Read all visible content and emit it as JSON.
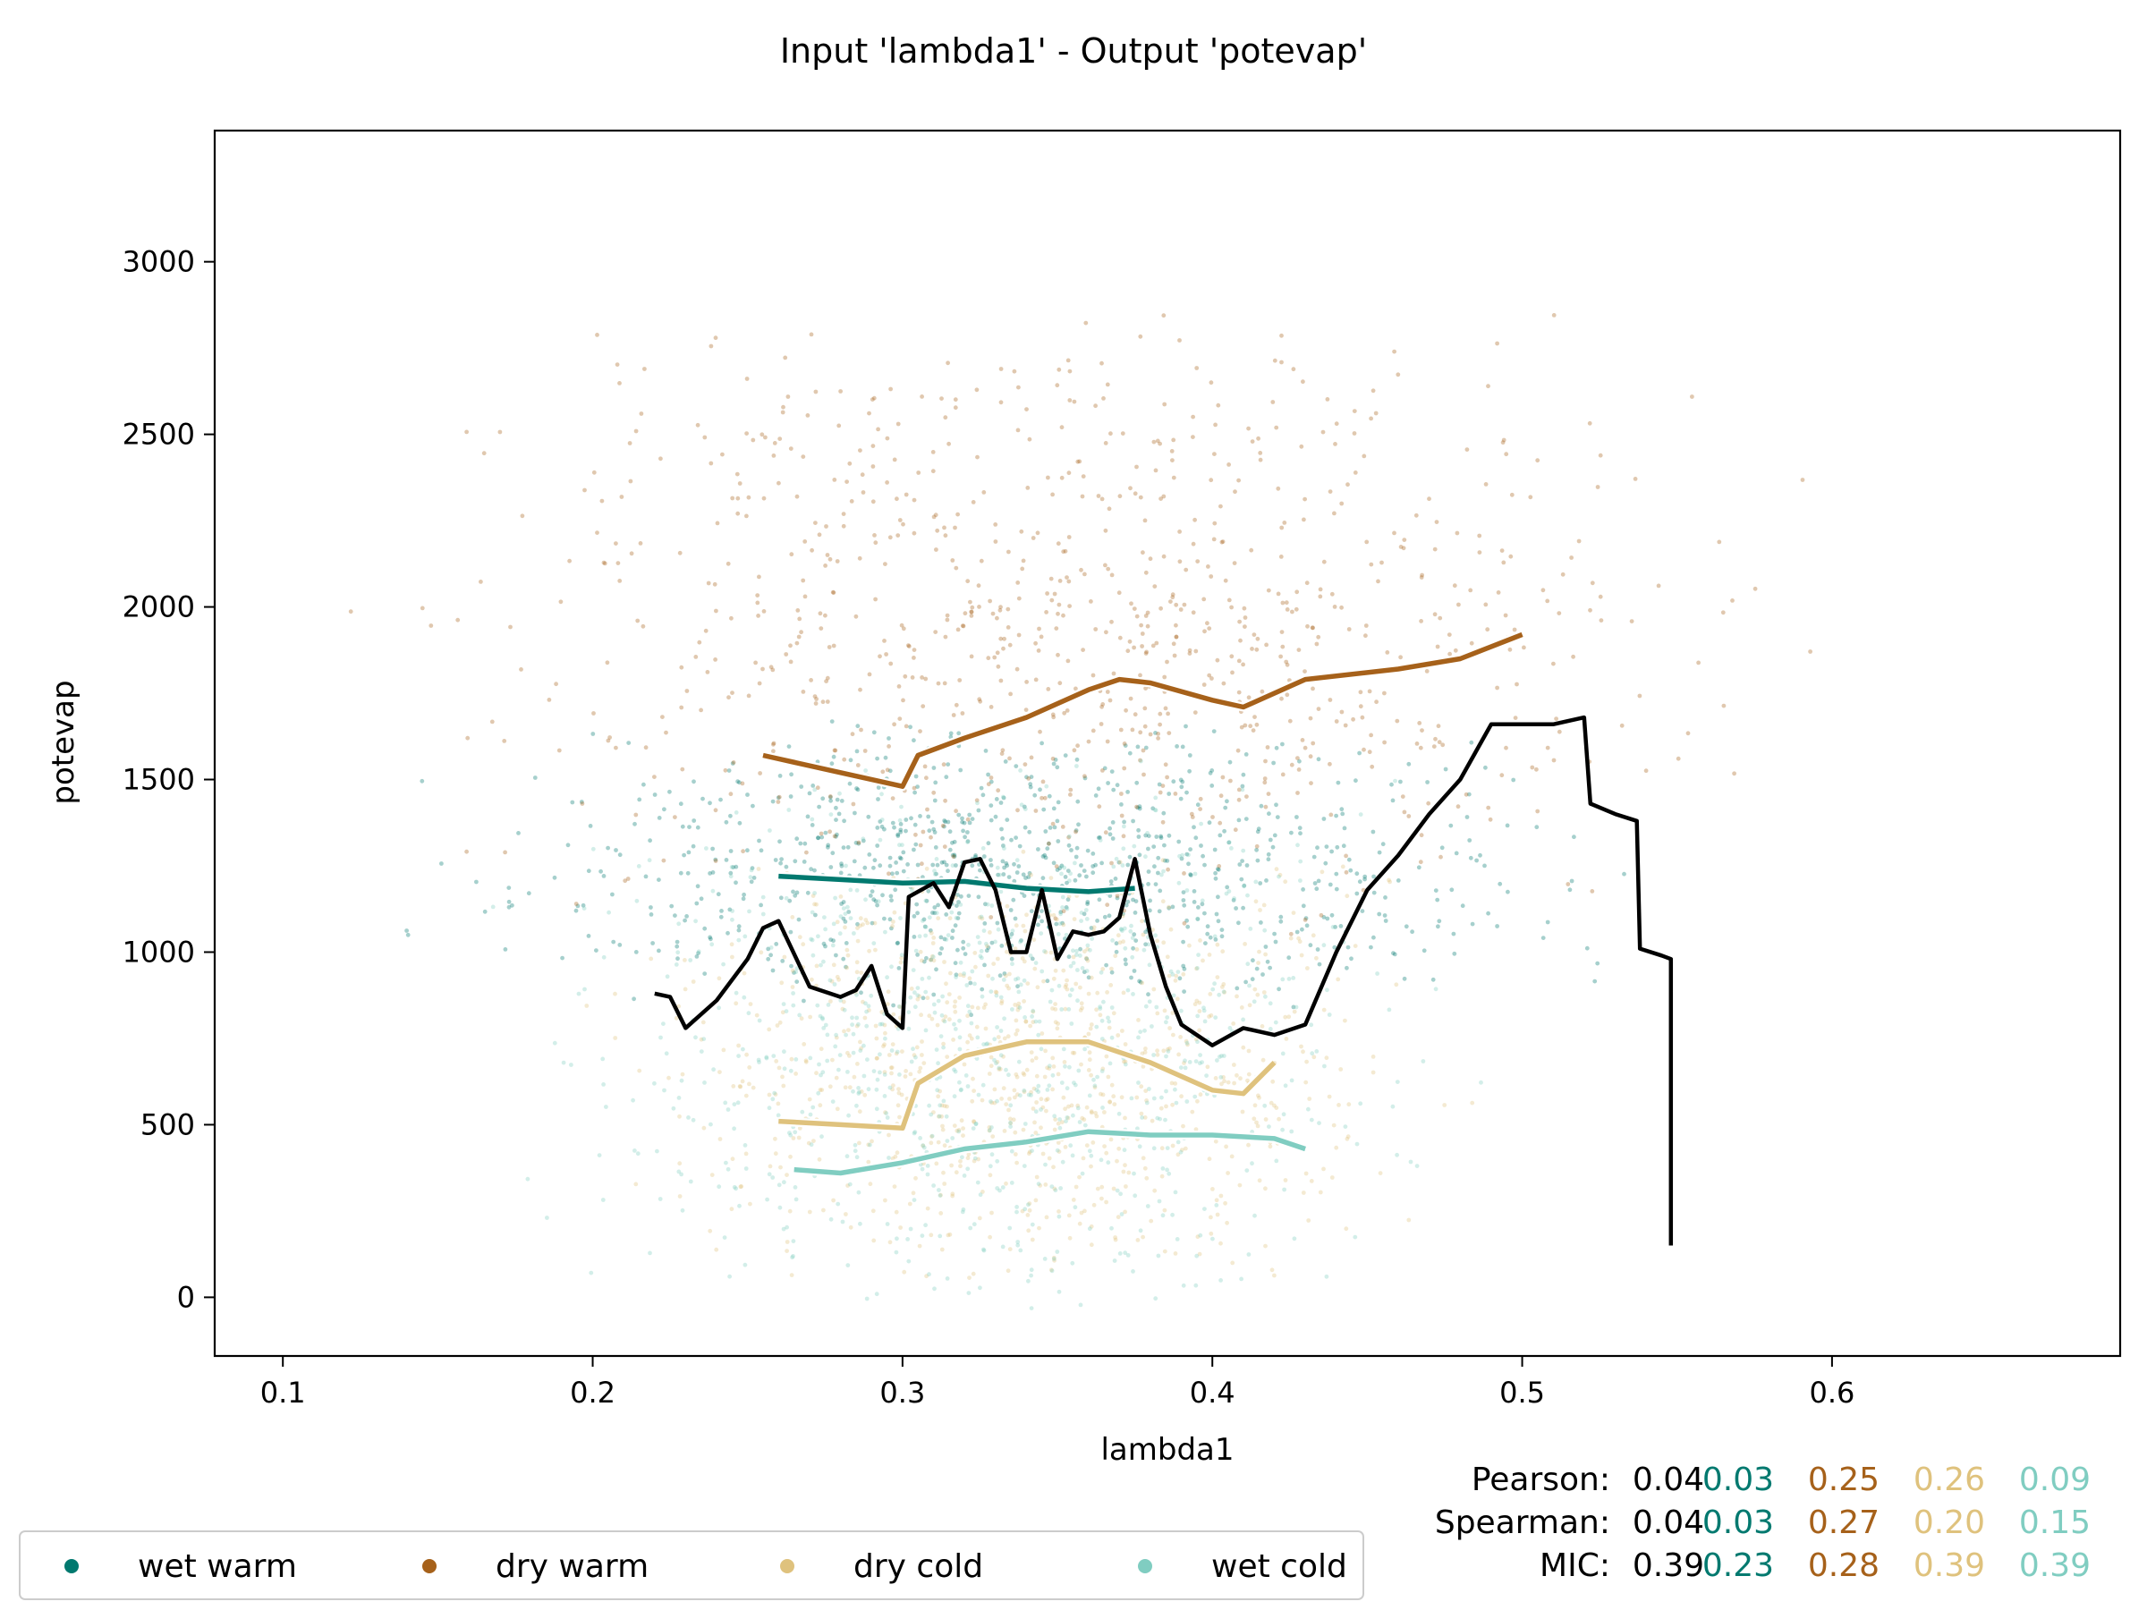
{
  "chart_data": {
    "type": "scatter",
    "title": "Input 'lambda1' - Output 'potevap'",
    "xlabel": "lambda1",
    "ylabel": "potevap",
    "xlim": [
      0.078,
      0.693
    ],
    "ylim": [
      -170,
      3380
    ],
    "xticks": [
      0.1,
      0.2,
      0.3,
      0.4,
      0.5,
      0.6
    ],
    "xtick_labels": [
      "0.1",
      "0.2",
      "0.3",
      "0.4",
      "0.5",
      "0.6"
    ],
    "yticks": [
      0,
      500,
      1000,
      1500,
      2000,
      2500,
      3000
    ],
    "ytick_labels": [
      "0",
      "500",
      "1000",
      "1500",
      "2000",
      "2500",
      "3000"
    ],
    "grid": false,
    "legend_position": "bottom-left, below axes",
    "series": [
      {
        "name": "wet warm",
        "color": "#01796f",
        "scatter_cloud": {
          "x_range": [
            0.17,
            0.5
          ],
          "y_range": [
            900,
            1600
          ]
        },
        "trend": [
          [
            0.26,
            1220
          ],
          [
            0.28,
            1210
          ],
          [
            0.3,
            1200
          ],
          [
            0.32,
            1205
          ],
          [
            0.34,
            1185
          ],
          [
            0.36,
            1175
          ],
          [
            0.375,
            1185
          ]
        ]
      },
      {
        "name": "dry warm",
        "color": "#a6611a",
        "scatter_cloud": {
          "x_range": [
            0.17,
            0.55
          ],
          "y_range": [
            1200,
            2700
          ]
        },
        "trend": [
          [
            0.255,
            1570
          ],
          [
            0.28,
            1520
          ],
          [
            0.3,
            1480
          ],
          [
            0.305,
            1570
          ],
          [
            0.32,
            1620
          ],
          [
            0.34,
            1680
          ],
          [
            0.36,
            1760
          ],
          [
            0.37,
            1790
          ],
          [
            0.38,
            1780
          ],
          [
            0.4,
            1730
          ],
          [
            0.41,
            1710
          ],
          [
            0.43,
            1790
          ],
          [
            0.46,
            1820
          ],
          [
            0.48,
            1850
          ],
          [
            0.5,
            1920
          ]
        ]
      },
      {
        "name": "dry cold",
        "color": "#dfc27d",
        "scatter_cloud": {
          "x_range": [
            0.22,
            0.46
          ],
          "y_range": [
            150,
            1200
          ]
        },
        "trend": [
          [
            0.26,
            510
          ],
          [
            0.28,
            500
          ],
          [
            0.3,
            490
          ],
          [
            0.305,
            620
          ],
          [
            0.32,
            700
          ],
          [
            0.34,
            740
          ],
          [
            0.36,
            740
          ],
          [
            0.38,
            680
          ],
          [
            0.4,
            600
          ],
          [
            0.41,
            590
          ],
          [
            0.42,
            680
          ]
        ]
      },
      {
        "name": "wet cold",
        "color": "#80cdc1",
        "scatter_cloud": {
          "x_range": [
            0.2,
            0.46
          ],
          "y_range": [
            100,
            1400
          ]
        },
        "trend": [
          [
            0.265,
            370
          ],
          [
            0.28,
            360
          ],
          [
            0.3,
            390
          ],
          [
            0.32,
            430
          ],
          [
            0.34,
            450
          ],
          [
            0.36,
            480
          ],
          [
            0.38,
            470
          ],
          [
            0.4,
            470
          ],
          [
            0.42,
            460
          ],
          [
            0.43,
            430
          ]
        ]
      },
      {
        "name": "",
        "color": "#000000",
        "trend": [
          [
            0.22,
            880
          ],
          [
            0.225,
            870
          ],
          [
            0.23,
            780
          ],
          [
            0.24,
            860
          ],
          [
            0.25,
            980
          ],
          [
            0.255,
            1070
          ],
          [
            0.26,
            1090
          ],
          [
            0.27,
            900
          ],
          [
            0.28,
            870
          ],
          [
            0.285,
            890
          ],
          [
            0.29,
            960
          ],
          [
            0.295,
            820
          ],
          [
            0.3,
            780
          ],
          [
            0.302,
            1160
          ],
          [
            0.31,
            1200
          ],
          [
            0.315,
            1130
          ],
          [
            0.32,
            1260
          ],
          [
            0.325,
            1270
          ],
          [
            0.33,
            1180
          ],
          [
            0.335,
            1000
          ],
          [
            0.34,
            1000
          ],
          [
            0.345,
            1180
          ],
          [
            0.35,
            980
          ],
          [
            0.355,
            1060
          ],
          [
            0.36,
            1050
          ],
          [
            0.365,
            1060
          ],
          [
            0.37,
            1100
          ],
          [
            0.375,
            1270
          ],
          [
            0.38,
            1050
          ],
          [
            0.385,
            900
          ],
          [
            0.39,
            790
          ],
          [
            0.395,
            760
          ],
          [
            0.4,
            730
          ],
          [
            0.41,
            780
          ],
          [
            0.42,
            760
          ],
          [
            0.43,
            790
          ],
          [
            0.44,
            1000
          ],
          [
            0.45,
            1180
          ],
          [
            0.46,
            1280
          ],
          [
            0.47,
            1400
          ],
          [
            0.48,
            1500
          ],
          [
            0.49,
            1660
          ],
          [
            0.5,
            1660
          ],
          [
            0.51,
            1660
          ],
          [
            0.52,
            1680
          ],
          [
            0.522,
            1430
          ],
          [
            0.53,
            1400
          ],
          [
            0.537,
            1380
          ],
          [
            0.538,
            1010
          ],
          [
            0.545,
            990
          ],
          [
            0.548,
            980
          ],
          [
            0.548,
            150
          ]
        ]
      }
    ],
    "stats": {
      "rows": [
        {
          "label": "Pearson:",
          "values": [
            "0.04",
            "0.03",
            "0.25",
            "0.26",
            "0.09"
          ]
        },
        {
          "label": "Spearman:",
          "values": [
            "0.04",
            "0.03",
            "0.27",
            "0.20",
            "0.15"
          ]
        },
        {
          "label": "MIC:",
          "values": [
            "0.39",
            "0.23",
            "0.28",
            "0.39",
            "0.39"
          ]
        }
      ],
      "value_colors": [
        "#000000",
        "#01796f",
        "#a6611a",
        "#dfc27d",
        "#80cdc1"
      ]
    }
  }
}
